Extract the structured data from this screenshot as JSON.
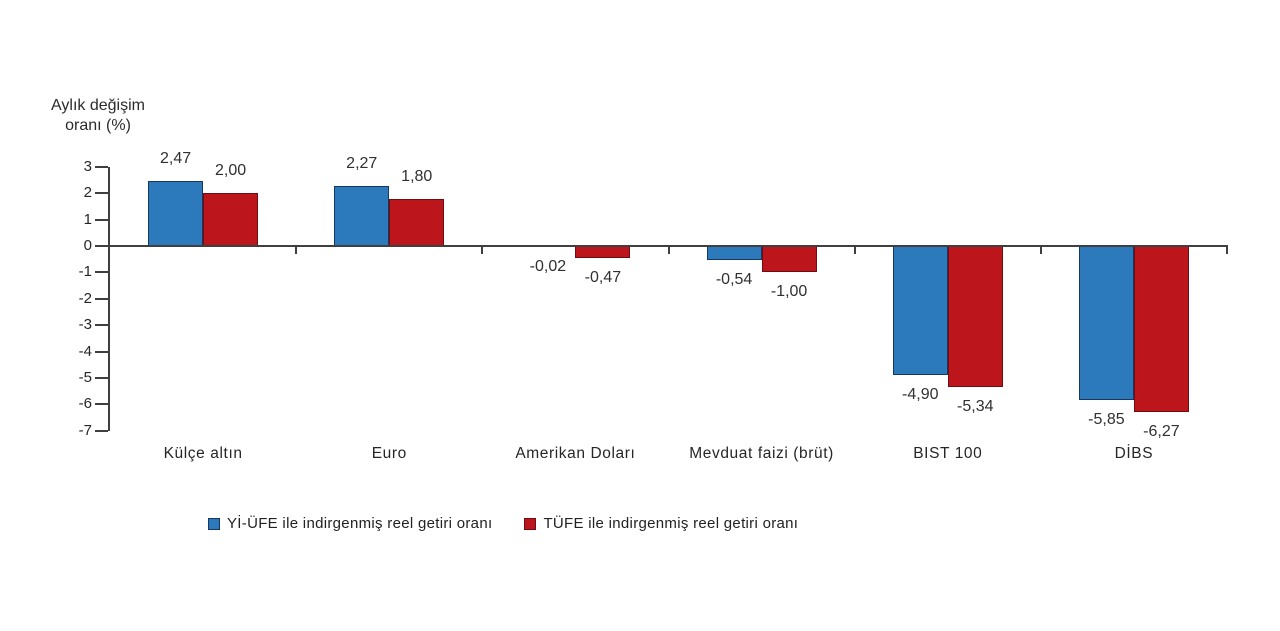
{
  "chart_data": {
    "type": "bar",
    "title": "",
    "ylabel": "Aylık değişim oranı (%)",
    "ylabel_lines": [
      "Aylık değişim",
      "oranı (%)"
    ],
    "xlabel": "",
    "ylim": [
      -7,
      3
    ],
    "y_ticks": [
      3,
      2,
      1,
      0,
      -1,
      -2,
      -3,
      -4,
      -5,
      -6,
      -7
    ],
    "grid": false,
    "legend_position": "bottom",
    "categories": [
      "Külçe altın",
      "Euro",
      "Amerikan Doları",
      "Mevduat faizi (brüt)",
      "BIST 100",
      "DİBS"
    ],
    "series": [
      {
        "name": "Yİ-ÜFE ile indirgenmiş reel getiri oranı",
        "color": "#2c7abc",
        "border_color": "#17375e",
        "values": [
          2.47,
          2.27,
          -0.02,
          -0.54,
          -4.9,
          -5.85
        ],
        "labels": [
          "2,47",
          "2,27",
          "-0,02",
          "-0,54",
          "-4,90",
          "-5,85"
        ]
      },
      {
        "name": "TÜFE ile indirgenmiş reel getiri oranı",
        "color": "#bd151c",
        "border_color": "#6e0e12",
        "values": [
          2.0,
          1.8,
          -0.47,
          -1.0,
          -5.34,
          -6.27
        ],
        "labels": [
          "2,00",
          "1,80",
          "-0,47",
          "-1,00",
          "-5,34",
          "-6,27"
        ]
      }
    ]
  }
}
